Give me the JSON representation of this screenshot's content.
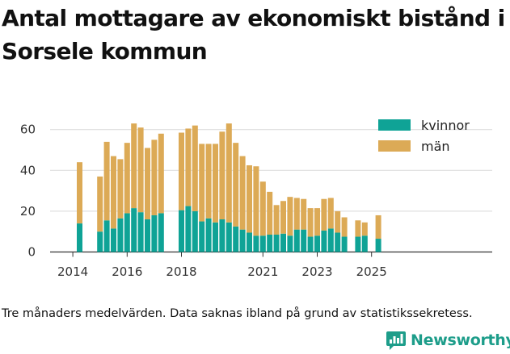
{
  "title": "Antal mottagare av ekonomiskt bistånd i Sorsele kommun",
  "footnote": "Tre månaders medelvärden. Data saknas ibland på grund av statistikssekretess.",
  "brand": {
    "name": "Newsworthy",
    "icon": "newsworthy-logo-icon"
  },
  "colors": {
    "kvinnor": "#0fa396",
    "man": "#dcaa56",
    "grid": "#d9d9d9",
    "text": "#333333",
    "brand": "#1d9d8a"
  },
  "chart_data": {
    "type": "bar",
    "stacked": true,
    "title": "Antal mottagare av ekonomiskt bistånd i Sorsele kommun",
    "xlabel": "",
    "ylabel": "",
    "ylim": [
      0,
      65
    ],
    "yticks": [
      0,
      20,
      40,
      60
    ],
    "xticks": [
      {
        "label": "2014",
        "year": 2014
      },
      {
        "label": "2016",
        "year": 2016
      },
      {
        "label": "2018",
        "year": 2018
      },
      {
        "label": "2021",
        "year": 2021
      },
      {
        "label": "2023",
        "year": 2023
      },
      {
        "label": "2025",
        "year": 2025
      }
    ],
    "grid": true,
    "legend_position": "top-right",
    "series": [
      {
        "name": "kvinnor",
        "color": "#0fa396"
      },
      {
        "name": "män",
        "color": "#dcaa56"
      }
    ],
    "x": [
      "2014-Q2",
      "2014-Q3",
      "2014-Q4",
      "2015-Q1",
      "2015-Q2",
      "2015-Q3",
      "2015-Q4",
      "2016-Q1",
      "2016-Q2",
      "2016-Q3",
      "2016-Q4",
      "2017-Q1",
      "2017-Q2",
      "2017-Q3",
      "2017-Q4",
      "2018-Q1",
      "2018-Q2",
      "2018-Q3",
      "2018-Q4",
      "2019-Q1",
      "2019-Q2",
      "2019-Q3",
      "2019-Q4",
      "2020-Q1",
      "2020-Q2",
      "2020-Q3",
      "2020-Q4",
      "2021-Q1",
      "2021-Q2",
      "2021-Q3",
      "2021-Q4",
      "2022-Q1",
      "2022-Q2",
      "2022-Q3",
      "2022-Q4",
      "2023-Q1",
      "2023-Q2",
      "2023-Q3",
      "2023-Q4",
      "2024-Q1",
      "2024-Q2",
      "2024-Q3",
      "2024-Q4",
      "2025-Q1",
      "2025-Q2"
    ],
    "kvinnor": [
      14,
      null,
      null,
      10,
      15.5,
      11.5,
      16.5,
      19,
      21.5,
      19.5,
      16,
      18,
      19,
      null,
      null,
      20.5,
      22.5,
      20,
      15,
      16.5,
      14.5,
      16,
      14.5,
      12.5,
      11,
      9.5,
      8,
      8,
      8.5,
      8.5,
      9,
      8,
      11,
      11,
      7.5,
      8,
      10.5,
      11.5,
      9.5,
      7.5,
      null,
      7.5,
      8,
      null,
      6.5
    ],
    "man": [
      30,
      null,
      null,
      27,
      38.5,
      35.5,
      29,
      34.5,
      41.5,
      41.5,
      35,
      37,
      39,
      null,
      null,
      38,
      38,
      42,
      38,
      36.5,
      38.5,
      43,
      48.5,
      41,
      36,
      33,
      34,
      26.5,
      21,
      14.5,
      16,
      19,
      15.5,
      15,
      14,
      13.5,
      15.5,
      15,
      10.5,
      9.5,
      null,
      8,
      6.5,
      null,
      11.5
    ]
  }
}
